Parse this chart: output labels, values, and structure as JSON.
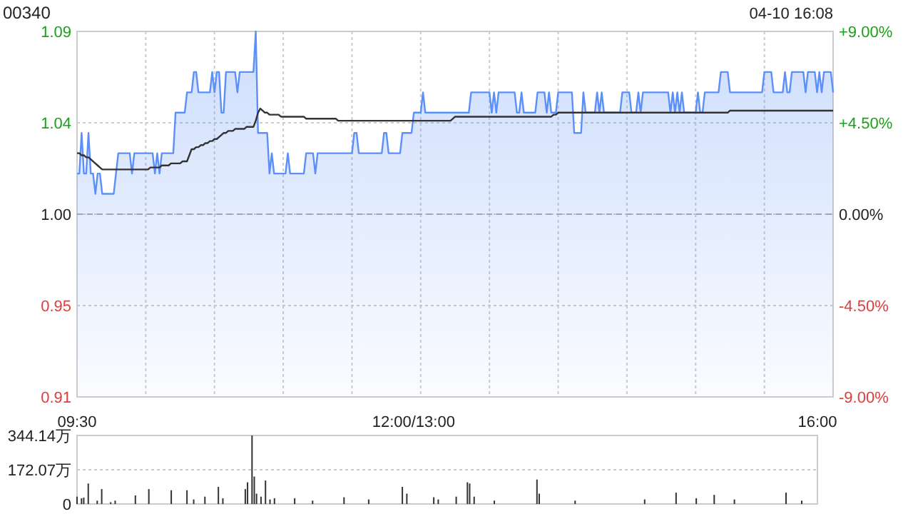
{
  "chart_data": [
    {
      "type": "line",
      "title": "00340",
      "subtitle": "04-10 16:08",
      "categories": [
        null,
        null,
        null,
        null,
        null,
        null,
        null,
        null,
        null,
        null,
        null,
        null,
        null,
        null,
        null,
        null,
        null,
        null,
        null,
        null,
        null,
        null,
        null,
        null,
        null,
        null,
        null,
        null,
        null,
        null,
        null,
        null,
        null,
        null,
        null,
        null,
        null,
        null,
        null,
        null,
        null,
        null,
        null,
        null,
        null,
        null,
        null,
        null,
        null,
        null,
        null,
        null,
        null,
        null,
        null,
        null,
        null,
        null,
        null,
        null,
        null,
        null,
        null,
        null,
        null,
        null,
        null,
        null,
        null,
        null,
        null,
        null,
        null,
        null,
        null,
        null,
        null,
        null,
        null,
        null,
        null,
        null,
        null,
        null,
        null,
        null,
        null,
        null,
        null,
        null,
        null,
        null,
        null,
        null,
        null,
        null,
        null,
        null,
        null,
        null,
        null,
        null,
        null,
        null,
        null,
        null,
        null,
        null,
        null,
        null,
        null,
        null,
        null,
        null,
        null,
        null,
        null,
        null,
        null,
        null,
        null,
        null,
        null,
        null,
        null,
        null,
        null,
        null,
        null,
        null,
        null,
        null,
        null,
        null,
        null,
        null,
        null,
        null,
        null,
        null,
        null,
        null,
        null,
        null,
        null,
        null,
        null,
        null,
        null,
        null,
        null,
        null,
        null,
        null,
        null,
        null,
        null,
        null,
        null,
        null,
        null,
        null,
        null,
        null,
        null,
        null,
        null,
        null,
        null,
        null,
        null,
        null,
        null,
        null,
        null,
        null,
        null,
        null,
        null,
        null,
        null,
        null,
        null,
        null,
        null,
        null,
        null,
        null,
        null,
        null,
        null,
        null,
        null,
        null,
        null,
        null,
        null,
        null,
        null,
        null,
        null,
        null,
        null,
        null,
        null,
        null,
        null,
        null,
        null,
        null,
        null,
        null,
        null,
        null,
        null,
        null,
        null,
        null,
        null,
        null,
        null,
        null,
        null,
        null,
        null,
        null,
        null,
        null,
        null,
        null,
        null,
        null,
        null,
        null,
        null,
        null,
        null,
        null,
        null,
        null,
        null,
        null,
        null,
        null,
        null,
        null,
        null,
        null,
        null,
        null,
        null,
        null,
        null,
        null,
        null,
        null,
        null,
        null,
        null,
        null,
        null,
        null,
        null,
        null,
        null,
        null,
        null,
        null,
        null,
        null,
        null,
        null,
        null,
        null,
        null,
        null,
        null,
        null,
        null,
        null,
        null,
        null,
        null,
        null,
        null,
        null,
        null,
        null,
        null,
        null,
        null,
        null,
        null,
        null,
        null,
        null,
        null,
        null,
        null,
        null,
        null,
        null,
        null,
        null,
        null,
        null,
        null,
        null,
        null,
        null,
        null,
        null,
        null,
        null,
        null,
        null,
        null,
        null,
        null,
        null,
        null,
        null,
        null,
        null,
        null,
        null,
        null,
        null,
        null,
        null,
        null
      ],
      "ylim": [
        0.91,
        1.09
      ],
      "yticks": [
        0.91,
        {
          "value": 0.955,
          "label": "0.95"
        },
        {
          "value": 1,
          "label": "1.00"
        },
        {
          "value": 1.045,
          "label": "1.04"
        },
        1.09
      ],
      "y2lim": [
        -9,
        9
      ],
      "y2ticks": [
        {
          "value": -9,
          "label": "-9.00%"
        },
        {
          "value": -4.5,
          "label": "-4.50%"
        },
        {
          "value": 0,
          "label": "0.00%"
        },
        {
          "value": 4.5,
          "label": "+4.50%"
        },
        {
          "value": 9,
          "label": "+9.00%"
        }
      ],
      "grid": true,
      "tick_labels": "y",
      "ref_lines": [
        {
          "axis": "y",
          "value": 1,
          "line_style": "dashed",
          "color": "#aaaaaa"
        }
      ],
      "series": [
        {
          "type": "area",
          "color": "#5b8ff9",
          "values": [
            1.02,
            1.02,
            1.04,
            1.02,
            1.02,
            1.04,
            1.02,
            1.02,
            1.01,
            1.02,
            1.02,
            1.01,
            1.01,
            1.01,
            1.01,
            1.01,
            1.01,
            1.02,
            1.03,
            1.03,
            1.03,
            1.03,
            1.03,
            1.03,
            1.02,
            1.03,
            1.03,
            1.03,
            1.03,
            1.03,
            1.03,
            1.03,
            1.03,
            1.03,
            1.02,
            1.03,
            1.02,
            1.03,
            1.03,
            1.03,
            1.03,
            1.03,
            1.03,
            1.05,
            1.05,
            1.05,
            1.05,
            1.05,
            1.06,
            1.06,
            1.06,
            1.07,
            1.07,
            1.06,
            1.06,
            1.06,
            1.06,
            1.06,
            1.06,
            1.07,
            1.06,
            1.07,
            1.07,
            1.05,
            1.05,
            1.07,
            1.07,
            1.07,
            1.07,
            1.07,
            1.06,
            1.07,
            1.07,
            1.07,
            1.07,
            1.07,
            1.07,
            1.07,
            1.09,
            1.04,
            1.04,
            1.04,
            1.04,
            1.04,
            1.02,
            1.03,
            1.02,
            1.02,
            1.02,
            1.02,
            1.02,
            1.02,
            1.03,
            1.02,
            1.02,
            1.02,
            1.02,
            1.02,
            1.02,
            1.02,
            1.03,
            1.03,
            1.03,
            1.03,
            1.02,
            1.03,
            1.03,
            1.03,
            1.03,
            1.03,
            1.03,
            1.03,
            1.03,
            1.03,
            1.03,
            1.03,
            1.03,
            1.03,
            1.03,
            1.03,
            1.03,
            1.04,
            1.04,
            1.03,
            1.03,
            1.03,
            1.03,
            1.03,
            1.03,
            1.03,
            1.03,
            1.03,
            1.03,
            1.03,
            1.04,
            1.04,
            1.03,
            1.03,
            1.03,
            1.03,
            1.03,
            1.03,
            1.04,
            1.04,
            1.04,
            1.04,
            1.04,
            1.05,
            1.05,
            1.05,
            1.05,
            1.06,
            1.05,
            1.05,
            1.05,
            1.05,
            1.05,
            1.05,
            1.05,
            1.05,
            1.05,
            1.05,
            1.05,
            1.05,
            1.05,
            1.05,
            1.05,
            1.05,
            1.05,
            1.05,
            1.05,
            1.05,
            1.06,
            1.06,
            1.06,
            1.06,
            1.06,
            1.06,
            1.06,
            1.06,
            1.06,
            1.05,
            1.06,
            1.05,
            1.06,
            1.06,
            1.06,
            1.06,
            1.06,
            1.06,
            1.06,
            1.06,
            1.05,
            1.05,
            1.06,
            1.05,
            1.05,
            1.05,
            1.05,
            1.05,
            1.05,
            1.06,
            1.06,
            1.06,
            1.06,
            1.05,
            1.06,
            1.05,
            1.05,
            1.05,
            1.06,
            1.06,
            1.06,
            1.06,
            1.06,
            1.06,
            1.06,
            1.04,
            1.04,
            1.04,
            1.04,
            1.06,
            1.05,
            1.05,
            1.05,
            1.05,
            1.05,
            1.06,
            1.05,
            1.06,
            1.05,
            1.05,
            1.05,
            1.05,
            1.05,
            1.05,
            1.05,
            1.05,
            1.06,
            1.06,
            1.06,
            1.06,
            1.05,
            1.05,
            1.05,
            1.06,
            1.05,
            1.06,
            1.06,
            1.06,
            1.06,
            1.06,
            1.06,
            1.06,
            1.06,
            1.06,
            1.06,
            1.06,
            1.06,
            1.05,
            1.06,
            1.05,
            1.06,
            1.05,
            1.06,
            1.05,
            1.05,
            1.05,
            1.05,
            1.05,
            1.05,
            1.06,
            1.05,
            1.05,
            1.06,
            1.06,
            1.06,
            1.06,
            1.06,
            1.06,
            1.06,
            1.07,
            1.07,
            1.07,
            1.07,
            1.06,
            1.06,
            1.06,
            1.06,
            1.06,
            1.06,
            1.06,
            1.06,
            1.06,
            1.06,
            1.06,
            1.06,
            1.06,
            1.06,
            1.06,
            1.07,
            1.07,
            1.07,
            1.07,
            1.06,
            1.06,
            1.06,
            1.06,
            1.06,
            1.07,
            1.06,
            1.06,
            1.07,
            1.07,
            1.07,
            1.07,
            1.07,
            1.07,
            1.06,
            1.07,
            1.07,
            1.07,
            1.07,
            1.06,
            1.07,
            1.06,
            1.07,
            1.07,
            1.07,
            1.07,
            1.06
          ]
        },
        {
          "type": "line",
          "color": "#333333",
          "values": [
            1.03,
            1.03,
            1.029,
            1.029,
            1.028,
            1.028,
            1.027,
            1.026,
            1.025,
            1.024,
            1.023,
            1.022,
            1.022,
            1.022,
            1.022,
            1.022,
            1.022,
            1.022,
            1.022,
            1.022,
            1.022,
            1.022,
            1.022,
            1.022,
            1.022,
            1.022,
            1.022,
            1.022,
            1.022,
            1.022,
            1.022,
            1.022,
            1.023,
            1.023,
            1.023,
            1.023,
            1.023,
            1.024,
            1.024,
            1.024,
            1.024,
            1.025,
            1.025,
            1.025,
            1.025,
            1.025,
            1.026,
            1.026,
            1.026,
            1.029,
            1.032,
            1.032,
            1.033,
            1.033,
            1.034,
            1.034,
            1.035,
            1.035,
            1.036,
            1.036,
            1.037,
            1.037,
            1.038,
            1.039,
            1.04,
            1.04,
            1.041,
            1.041,
            1.041,
            1.042,
            1.042,
            1.042,
            1.042,
            1.042,
            1.043,
            1.043,
            1.043,
            1.043,
            1.046,
            1.05,
            1.052,
            1.051,
            1.05,
            1.05,
            1.049,
            1.049,
            1.049,
            1.049,
            1.049,
            1.048,
            1.048,
            1.048,
            1.048,
            1.048,
            1.048,
            1.048,
            1.048,
            1.048,
            1.048,
            1.048,
            1.047,
            1.047,
            1.047,
            1.047,
            1.047,
            1.047,
            1.047,
            1.047,
            1.047,
            1.047,
            1.047,
            1.047,
            1.047,
            1.047,
            1.046,
            1.046,
            1.046,
            1.046,
            1.046,
            1.046,
            1.046,
            1.046,
            1.046,
            1.046,
            1.046,
            1.046,
            1.046,
            1.046,
            1.046,
            1.046,
            1.046,
            1.046,
            1.046,
            1.046,
            1.046,
            1.046,
            1.046,
            1.046,
            1.046,
            1.046,
            1.046,
            1.046,
            1.046,
            1.046,
            1.046,
            1.046,
            1.046,
            1.046,
            1.046,
            1.046,
            1.046,
            1.046,
            1.046,
            1.046,
            1.046,
            1.046,
            1.046,
            1.046,
            1.046,
            1.046,
            1.046,
            1.046,
            1.046,
            1.046,
            1.047,
            1.048,
            1.048,
            1.048,
            1.048,
            1.048,
            1.048,
            1.048,
            1.048,
            1.048,
            1.048,
            1.048,
            1.048,
            1.048,
            1.048,
            1.048,
            1.048,
            1.048,
            1.048,
            1.048,
            1.048,
            1.048,
            1.048,
            1.048,
            1.048,
            1.048,
            1.048,
            1.048,
            1.048,
            1.048,
            1.048,
            1.048,
            1.048,
            1.048,
            1.048,
            1.048,
            1.048,
            1.048,
            1.048,
            1.048,
            1.048,
            1.048,
            1.048,
            1.048,
            1.049,
            1.049,
            1.05,
            1.05,
            1.05,
            1.05,
            1.05,
            1.05,
            1.05,
            1.05,
            1.05,
            1.05,
            1.05,
            1.05,
            1.05,
            1.05,
            1.05,
            1.05,
            1.05,
            1.05,
            1.05,
            1.05,
            1.05,
            1.05,
            1.05,
            1.05,
            1.05,
            1.05,
            1.05,
            1.05,
            1.05,
            1.05,
            1.05,
            1.05,
            1.05,
            1.05,
            1.05,
            1.05,
            1.05,
            1.05,
            1.05,
            1.05,
            1.05,
            1.05,
            1.05,
            1.05,
            1.05,
            1.05,
            1.05,
            1.05,
            1.05,
            1.05,
            1.05,
            1.05,
            1.05,
            1.05,
            1.05,
            1.05,
            1.05,
            1.05,
            1.05,
            1.05,
            1.05,
            1.05,
            1.05,
            1.05,
            1.05,
            1.05,
            1.05,
            1.05,
            1.05,
            1.05,
            1.05,
            1.05,
            1.05,
            1.05,
            1.05,
            1.051,
            1.051,
            1.051,
            1.051,
            1.051,
            1.051,
            1.051,
            1.051,
            1.051,
            1.051,
            1.051,
            1.051,
            1.051,
            1.051,
            1.051,
            1.051,
            1.051,
            1.051,
            1.051,
            1.051,
            1.051,
            1.051,
            1.051,
            1.051,
            1.051,
            1.051,
            1.051,
            1.051,
            1.051,
            1.051,
            1.051,
            1.051,
            1.051,
            1.051,
            1.051,
            1.051,
            1.051,
            1.051,
            1.051,
            1.051,
            1.051,
            1.051,
            1.051,
            1.051,
            1.051,
            1.051
          ]
        }
      ]
    },
    {
      "type": "bar",
      "categories": [
        "09:30",
        null,
        null,
        null,
        null,
        null,
        null,
        null,
        null,
        null,
        null,
        null,
        null,
        null,
        null,
        null,
        null,
        null,
        null,
        null,
        null,
        null,
        null,
        null,
        null,
        null,
        null,
        null,
        null,
        null,
        null,
        null,
        null,
        null,
        null,
        null,
        null,
        null,
        null,
        null,
        null,
        null,
        null,
        null,
        null,
        null,
        null,
        null,
        null,
        null,
        null,
        null,
        null,
        null,
        null,
        null,
        null,
        null,
        null,
        null,
        null,
        null,
        null,
        null,
        null,
        null,
        null,
        null,
        null,
        null,
        null,
        null,
        null,
        null,
        null,
        null,
        null,
        null,
        null,
        null,
        null,
        null,
        null,
        null,
        null,
        null,
        null,
        null,
        null,
        null,
        null,
        null,
        null,
        null,
        null,
        null,
        null,
        null,
        null,
        null,
        null,
        null,
        null,
        null,
        null,
        null,
        null,
        null,
        null,
        null,
        null,
        null,
        null,
        null,
        null,
        null,
        null,
        null,
        null,
        null,
        null,
        null,
        null,
        null,
        null,
        null,
        null,
        null,
        null,
        null,
        null,
        null,
        null,
        null,
        null,
        null,
        null,
        null,
        null,
        null,
        null,
        null,
        null,
        null,
        null,
        null,
        null,
        null,
        null,
        null,
        "12:00/13:00",
        null,
        null,
        null,
        null,
        null,
        null,
        null,
        null,
        null,
        null,
        null,
        null,
        null,
        null,
        null,
        null,
        null,
        null,
        null,
        null,
        null,
        null,
        null,
        null,
        null,
        null,
        null,
        null,
        null,
        null,
        null,
        null,
        null,
        null,
        null,
        null,
        null,
        null,
        null,
        null,
        null,
        null,
        null,
        null,
        null,
        null,
        null,
        null,
        null,
        null,
        null,
        null,
        null,
        null,
        null,
        null,
        null,
        null,
        null,
        null,
        null,
        null,
        null,
        null,
        null,
        null,
        null,
        null,
        null,
        null,
        null,
        null,
        null,
        null,
        null,
        null,
        null,
        null,
        null,
        null,
        null,
        null,
        null,
        null,
        null,
        null,
        null,
        null,
        null,
        null,
        null,
        null,
        null,
        null,
        null,
        null,
        null,
        null,
        null,
        null,
        null,
        null,
        null,
        null,
        null,
        null,
        null,
        null,
        null,
        null,
        null,
        null,
        null,
        null,
        null,
        null,
        null,
        null,
        null,
        null,
        null,
        null,
        null,
        null,
        null,
        null,
        null,
        null,
        null,
        null,
        null,
        null,
        null,
        null,
        null,
        null,
        null,
        null,
        null,
        null,
        null,
        null,
        null,
        null,
        null,
        null,
        null,
        null,
        null,
        null,
        null,
        null,
        null,
        null,
        null,
        null,
        null,
        null,
        null,
        null,
        null,
        null,
        null,
        null,
        null,
        null,
        null,
        null,
        null,
        null,
        null,
        null,
        null,
        null,
        null,
        null,
        null,
        null,
        null,
        "16:00"
      ],
      "ylim": [
        0,
        344.14
      ],
      "yticks": [
        0,
        {
          "value": 172.07,
          "label": "172.07万"
        },
        {
          "value": 344.14,
          "label": "344.14万"
        }
      ],
      "grid": "y",
      "series": [
        {
          "color": "#333333",
          "values": [
            37,
            null,
            29,
            32,
            null,
            103,
            null,
            null,
            null,
            17,
            null,
            75,
            null,
            null,
            null,
            9,
            null,
            17,
            null,
            null,
            null,
            null,
            null,
            null,
            null,
            null,
            43,
            null,
            null,
            null,
            null,
            null,
            75,
            null,
            null,
            null,
            null,
            null,
            null,
            null,
            null,
            null,
            69,
            null,
            null,
            null,
            null,
            null,
            null,
            69,
            null,
            null,
            23,
            null,
            null,
            null,
            null,
            37,
            null,
            null,
            null,
            null,
            null,
            86,
            null,
            29,
            null,
            null,
            null,
            null,
            null,
            null,
            null,
            null,
            null,
            75,
            109,
            null,
            344,
            138,
            52,
            null,
            37,
            null,
            118,
            null,
            23,
            null,
            29,
            null,
            null,
            null,
            null,
            null,
            null,
            null,
            null,
            29,
            null,
            null,
            null,
            null,
            null,
            null,
            null,
            17,
            null,
            null,
            null,
            null,
            null,
            null,
            null,
            null,
            null,
            null,
            null,
            null,
            null,
            34,
            null,
            null,
            null,
            null,
            null,
            null,
            null,
            null,
            null,
            null,
            23,
            null,
            null,
            null,
            null,
            null,
            null,
            null,
            null,
            null,
            null,
            null,
            null,
            null,
            null,
            86,
            null,
            52,
            null,
            null,
            null,
            null,
            null,
            null,
            null,
            null,
            null,
            null,
            null,
            34,
            null,
            23,
            null,
            null,
            null,
            null,
            null,
            null,
            null,
            37,
            null,
            null,
            null,
            null,
            109,
            103,
            null,
            37,
            null,
            null,
            null,
            null,
            null,
            null,
            null,
            null,
            17,
            null,
            null,
            null,
            null,
            null,
            null,
            null,
            null,
            null,
            null,
            null,
            null,
            null,
            null,
            null,
            null,
            null,
            null,
            123,
            52,
            null,
            null,
            null,
            null,
            null,
            null,
            null,
            null,
            null,
            null,
            null,
            null,
            null,
            null,
            null,
            17,
            null,
            null,
            null,
            null,
            null,
            null,
            null,
            null,
            null,
            null,
            null,
            null,
            null,
            null,
            null,
            null,
            null,
            null,
            null,
            null,
            null,
            null,
            null,
            null,
            null,
            null,
            null,
            null,
            null,
            null,
            23,
            null,
            null,
            null,
            null,
            null,
            null,
            null,
            null,
            null,
            null,
            null,
            null,
            null,
            57,
            null,
            null,
            null,
            null,
            null,
            null,
            null,
            null,
            29,
            null,
            null,
            null,
            null,
            null,
            null,
            null,
            46,
            null,
            null,
            null,
            null,
            null,
            null,
            null,
            null,
            23,
            null,
            null,
            null,
            null,
            null,
            null,
            null,
            null,
            null,
            null,
            null,
            null,
            null,
            null,
            null,
            null,
            null,
            null,
            null,
            null,
            null,
            null,
            57,
            null,
            null,
            null,
            null,
            null,
            null,
            17,
            null,
            null,
            null,
            null,
            null,
            null,
            null
          ]
        }
      ]
    }
  ]
}
